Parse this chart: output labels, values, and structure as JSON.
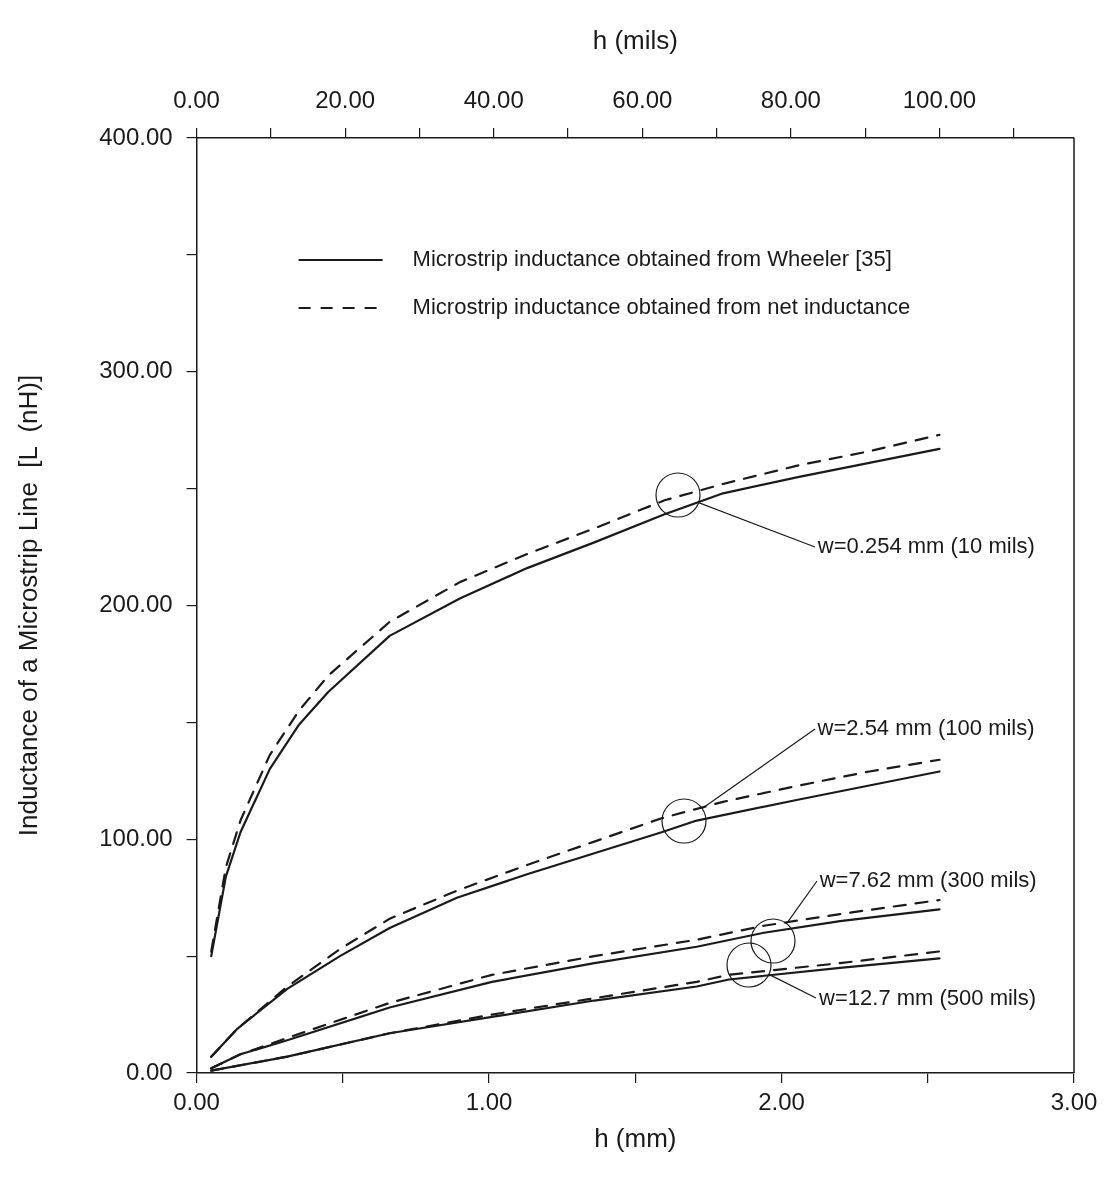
{
  "chart_data": {
    "type": "line",
    "xlabel": "h (mm)",
    "x2label": "h (mils)",
    "ylabel": "Inductance of a Microstrip Line  [L  (nH)]",
    "xlim": [
      0,
      3
    ],
    "xticks": [
      {
        "value": 0,
        "label": "0.00"
      },
      {
        "value": 0.5,
        "label": null
      },
      {
        "value": 1,
        "label": "1.00"
      },
      {
        "value": 1.5,
        "label": null
      },
      {
        "value": 2,
        "label": "2.00"
      },
      {
        "value": 2.5,
        "label": null
      },
      {
        "value": 3,
        "label": "3.00"
      }
    ],
    "x2lim": [
      0,
      118.11
    ],
    "x2ticks": [
      {
        "value": 0,
        "label": "0.00"
      },
      {
        "value": 10,
        "label": null
      },
      {
        "value": 20,
        "label": "20.00"
      },
      {
        "value": 30,
        "label": null
      },
      {
        "value": 40,
        "label": "40.00"
      },
      {
        "value": 50,
        "label": null
      },
      {
        "value": 60,
        "label": "60.00"
      },
      {
        "value": 70,
        "label": null
      },
      {
        "value": 80,
        "label": "80.00"
      },
      {
        "value": 90,
        "label": null
      },
      {
        "value": 100,
        "label": "100.00"
      },
      {
        "value": 110,
        "label": null
      }
    ],
    "ylim": [
      0,
      400
    ],
    "yticks": [
      {
        "value": 0,
        "label": "0.00"
      },
      {
        "value": 50,
        "label": null
      },
      {
        "value": 100,
        "label": "100.00"
      },
      {
        "value": 150,
        "label": null
      },
      {
        "value": 200,
        "label": "200.00"
      },
      {
        "value": 250,
        "label": null
      },
      {
        "value": 300,
        "label": "300.00"
      },
      {
        "value": 350,
        "label": null
      },
      {
        "value": 400,
        "label": "400.00"
      }
    ],
    "grid": false,
    "legend": "top",
    "marker": "none",
    "series": [
      {
        "name": "Microstrip inductance obtained from Wheeler [35]",
        "color": "#1a1a1a",
        "line_style": "solid",
        "x": [
          0.05,
          0.1,
          0.15,
          0.25,
          0.35,
          0.45,
          0.66,
          0.9,
          1.13,
          1.36,
          1.6,
          1.8,
          2.06,
          2.3,
          2.54
        ],
        "values": [
          50,
          84,
          103,
          130,
          149,
          163,
          187,
          203,
          216,
          227,
          239,
          248,
          255,
          261,
          267
        ]
      },
      {
        "name": "Microstrip inductance obtained from net inductance",
        "color": "#1a1a1a",
        "line_style": "dashed",
        "x": [
          0.05,
          0.1,
          0.15,
          0.25,
          0.35,
          0.45,
          0.66,
          0.9,
          1.13,
          1.36,
          1.6,
          1.8,
          2.06,
          2.3,
          2.54
        ],
        "values": [
          52,
          88,
          108,
          136,
          155,
          170,
          193,
          210,
          222,
          233,
          245,
          252,
          260,
          266,
          273
        ]
      },
      {
        "color": "#1a1a1a",
        "line_style": "solid",
        "x": [
          0.05,
          0.14,
          0.31,
          0.49,
          0.66,
          0.89,
          1.13,
          1.36,
          1.59,
          1.71,
          2.06,
          2.3,
          2.54
        ],
        "values": [
          7,
          19,
          36,
          50,
          62,
          75,
          85,
          94,
          103,
          108,
          117,
          123,
          129
        ]
      },
      {
        "color": "#1a1a1a",
        "line_style": "dashed",
        "x": [
          0.05,
          0.14,
          0.31,
          0.49,
          0.66,
          0.89,
          1.13,
          1.36,
          1.59,
          1.8,
          2.06,
          2.3,
          2.54
        ],
        "values": [
          7,
          19,
          37,
          53,
          66,
          78,
          89,
          99,
          109,
          116,
          123,
          129,
          134
        ]
      },
      {
        "color": "#1a1a1a",
        "line_style": "solid",
        "x": [
          0.05,
          0.15,
          0.31,
          0.66,
          1.01,
          1.36,
          1.71,
          1.94,
          2.2,
          2.54
        ],
        "values": [
          2,
          8,
          14,
          28,
          39,
          47,
          54,
          60,
          65,
          70
        ]
      },
      {
        "color": "#1a1a1a",
        "line_style": "dashed",
        "x": [
          0.05,
          0.15,
          0.31,
          0.66,
          1.01,
          1.36,
          1.71,
          1.94,
          2.2,
          2.54
        ],
        "values": [
          2,
          8,
          15,
          30,
          42,
          50,
          57,
          63,
          68,
          74
        ]
      },
      {
        "color": "#1a1a1a",
        "line_style": "solid",
        "x": [
          0.05,
          0.31,
          0.66,
          1.01,
          1.36,
          1.71,
          1.82,
          2.2,
          2.54
        ],
        "values": [
          1,
          7,
          17,
          24,
          31,
          37,
          40,
          45,
          49
        ]
      },
      {
        "color": "#1a1a1a",
        "line_style": "dashed",
        "x": [
          0.05,
          0.31,
          0.66,
          1.01,
          1.36,
          1.71,
          1.82,
          2.2,
          2.54
        ],
        "values": [
          1,
          7,
          17,
          25,
          32,
          39,
          42,
          47,
          52
        ]
      }
    ],
    "annotations": [
      {
        "text": "w=0.254 mm (10 mils)",
        "x": 1.716,
        "y": 244
      },
      {
        "text": "w=2.54 mm (100 mils)",
        "x": 1.727,
        "y": 113
      },
      {
        "text": "w=7.62 mm (300 mils)",
        "x": 2.016,
        "y": 64
      },
      {
        "text": "w=12.7 mm (500 mils)",
        "x": 1.957,
        "y": 42
      }
    ]
  }
}
